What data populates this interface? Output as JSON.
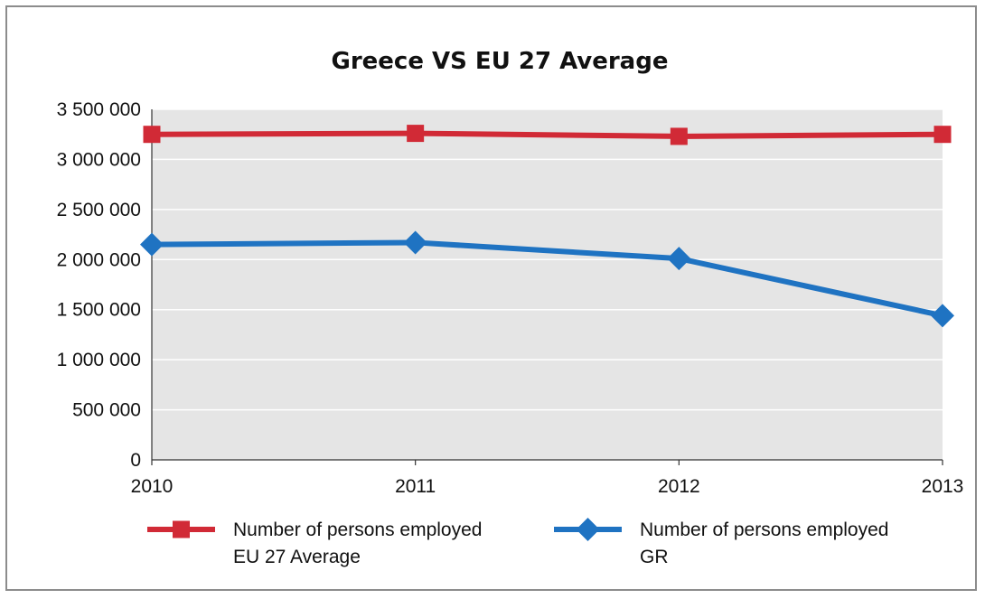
{
  "chart_data": {
    "type": "line",
    "title": "Greece VS EU 27 Average",
    "xlabel": "",
    "ylabel": "",
    "x": [
      "2010",
      "2011",
      "2012",
      "2013"
    ],
    "ylim": [
      0,
      3500000
    ],
    "yticks": [
      0,
      500000,
      1000000,
      1500000,
      2000000,
      2500000,
      3000000,
      3500000
    ],
    "ytick_labels": [
      "0",
      "500 000",
      "1 000 000",
      "1 500 000",
      "2 000 000",
      "2 500 000",
      "3 000 000",
      "3 500 000"
    ],
    "grid": true,
    "legend_position": "bottom",
    "series": [
      {
        "name": "Number of persons employed EU 27 Average",
        "legend_lines": [
          "Number of persons employed",
          "EU 27 Average"
        ],
        "values": [
          3250000,
          3260000,
          3230000,
          3250000
        ],
        "color": "#d12a36",
        "marker": "square"
      },
      {
        "name": "Number of persons employed GR",
        "legend_lines": [
          "Number of persons employed",
          "GR"
        ],
        "values": [
          2150000,
          2170000,
          2010000,
          1440000
        ],
        "color": "#1f73c2",
        "marker": "diamond"
      }
    ],
    "plot_background": "#e5e5e5",
    "gridline_color": "#ffffff"
  }
}
